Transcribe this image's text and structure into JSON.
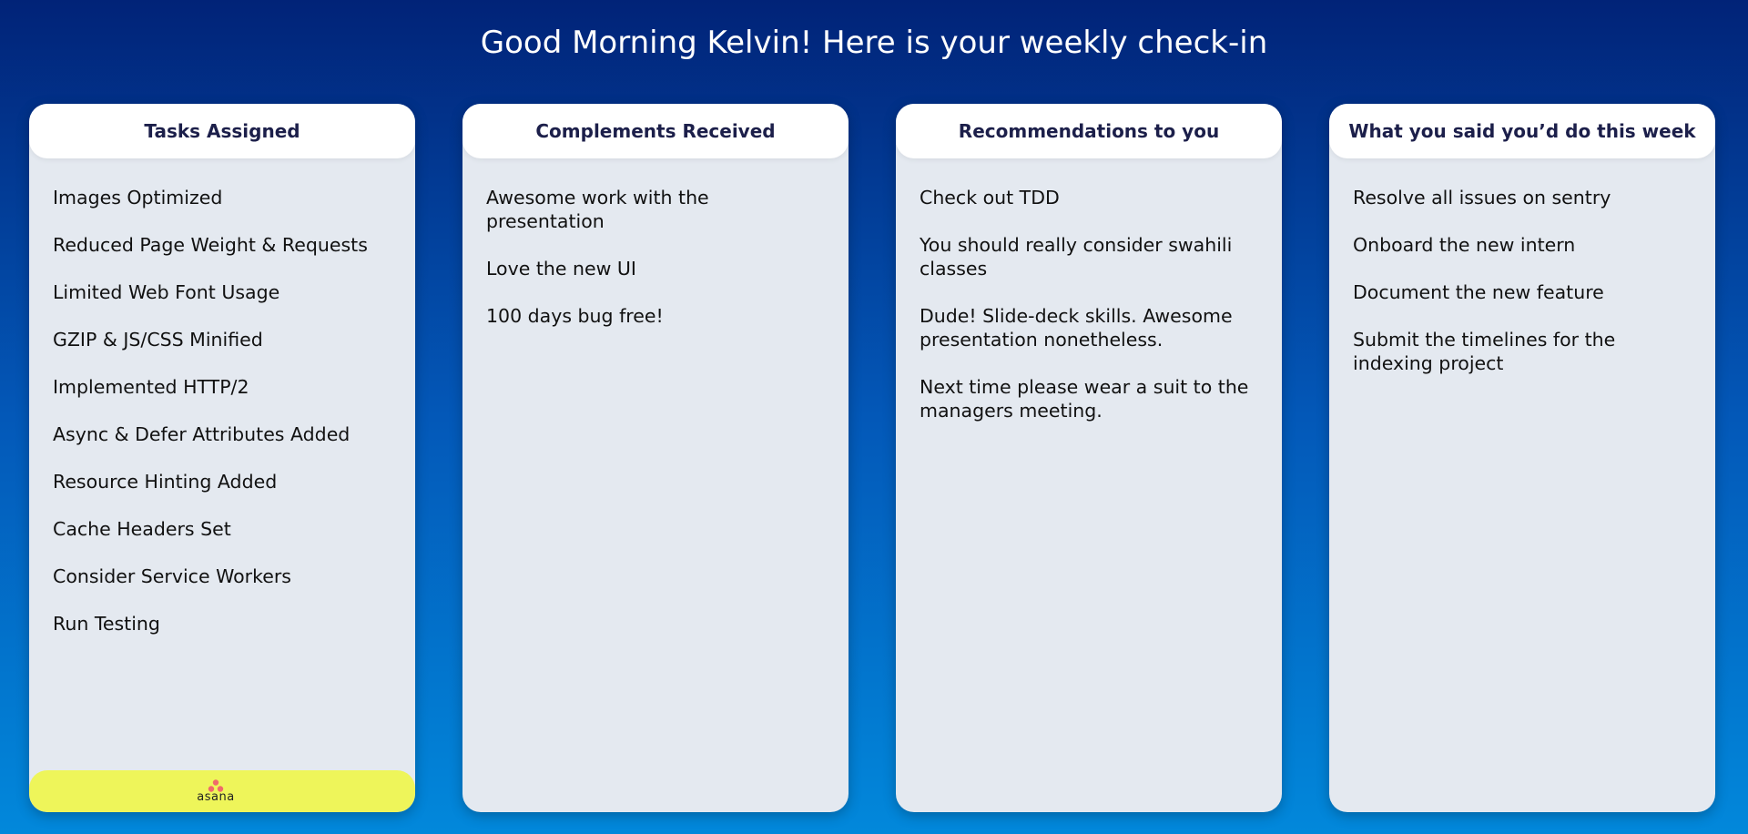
{
  "greeting": "Good Morning Kelvin! Here is your weekly check-in",
  "columns": [
    {
      "title": "Tasks Assigned",
      "items": [
        "Images Optimized",
        "Reduced Page Weight & Requests",
        "Limited Web Font Usage",
        "GZIP & JS/CSS Minified",
        "Implemented HTTP/2",
        "Async & Defer Attributes Added",
        "Resource Hinting Added",
        "Cache Headers Set",
        "Consider Service Workers",
        "Run Testing"
      ],
      "footer_logo": "asana"
    },
    {
      "title": "Complements Received",
      "items": [
        "Awesome work with the presentation",
        "Love the new UI",
        "100 days bug free!"
      ]
    },
    {
      "title": "Recommendations to you",
      "items": [
        "Check out TDD",
        "You should really consider swahili classes",
        "Dude! Slide-deck skills. Awesome presentation nonetheless.",
        "Next time please wear a suit to the managers meeting."
      ]
    },
    {
      "title": "What you said you’d do this week",
      "items": [
        "Resolve all issues on sentry",
        "Onboard the new intern",
        "Document the new feature",
        "Submit the timelines for the indexing project"
      ]
    }
  ],
  "colors": {
    "background_top": "#012378",
    "background_bottom": "#0288db",
    "card": "#e4e9f0",
    "header": "#ffffff",
    "footer": "#eef55a",
    "asana_brand": "#f06a6a"
  },
  "icons": [
    "asana-logo-icon"
  ]
}
